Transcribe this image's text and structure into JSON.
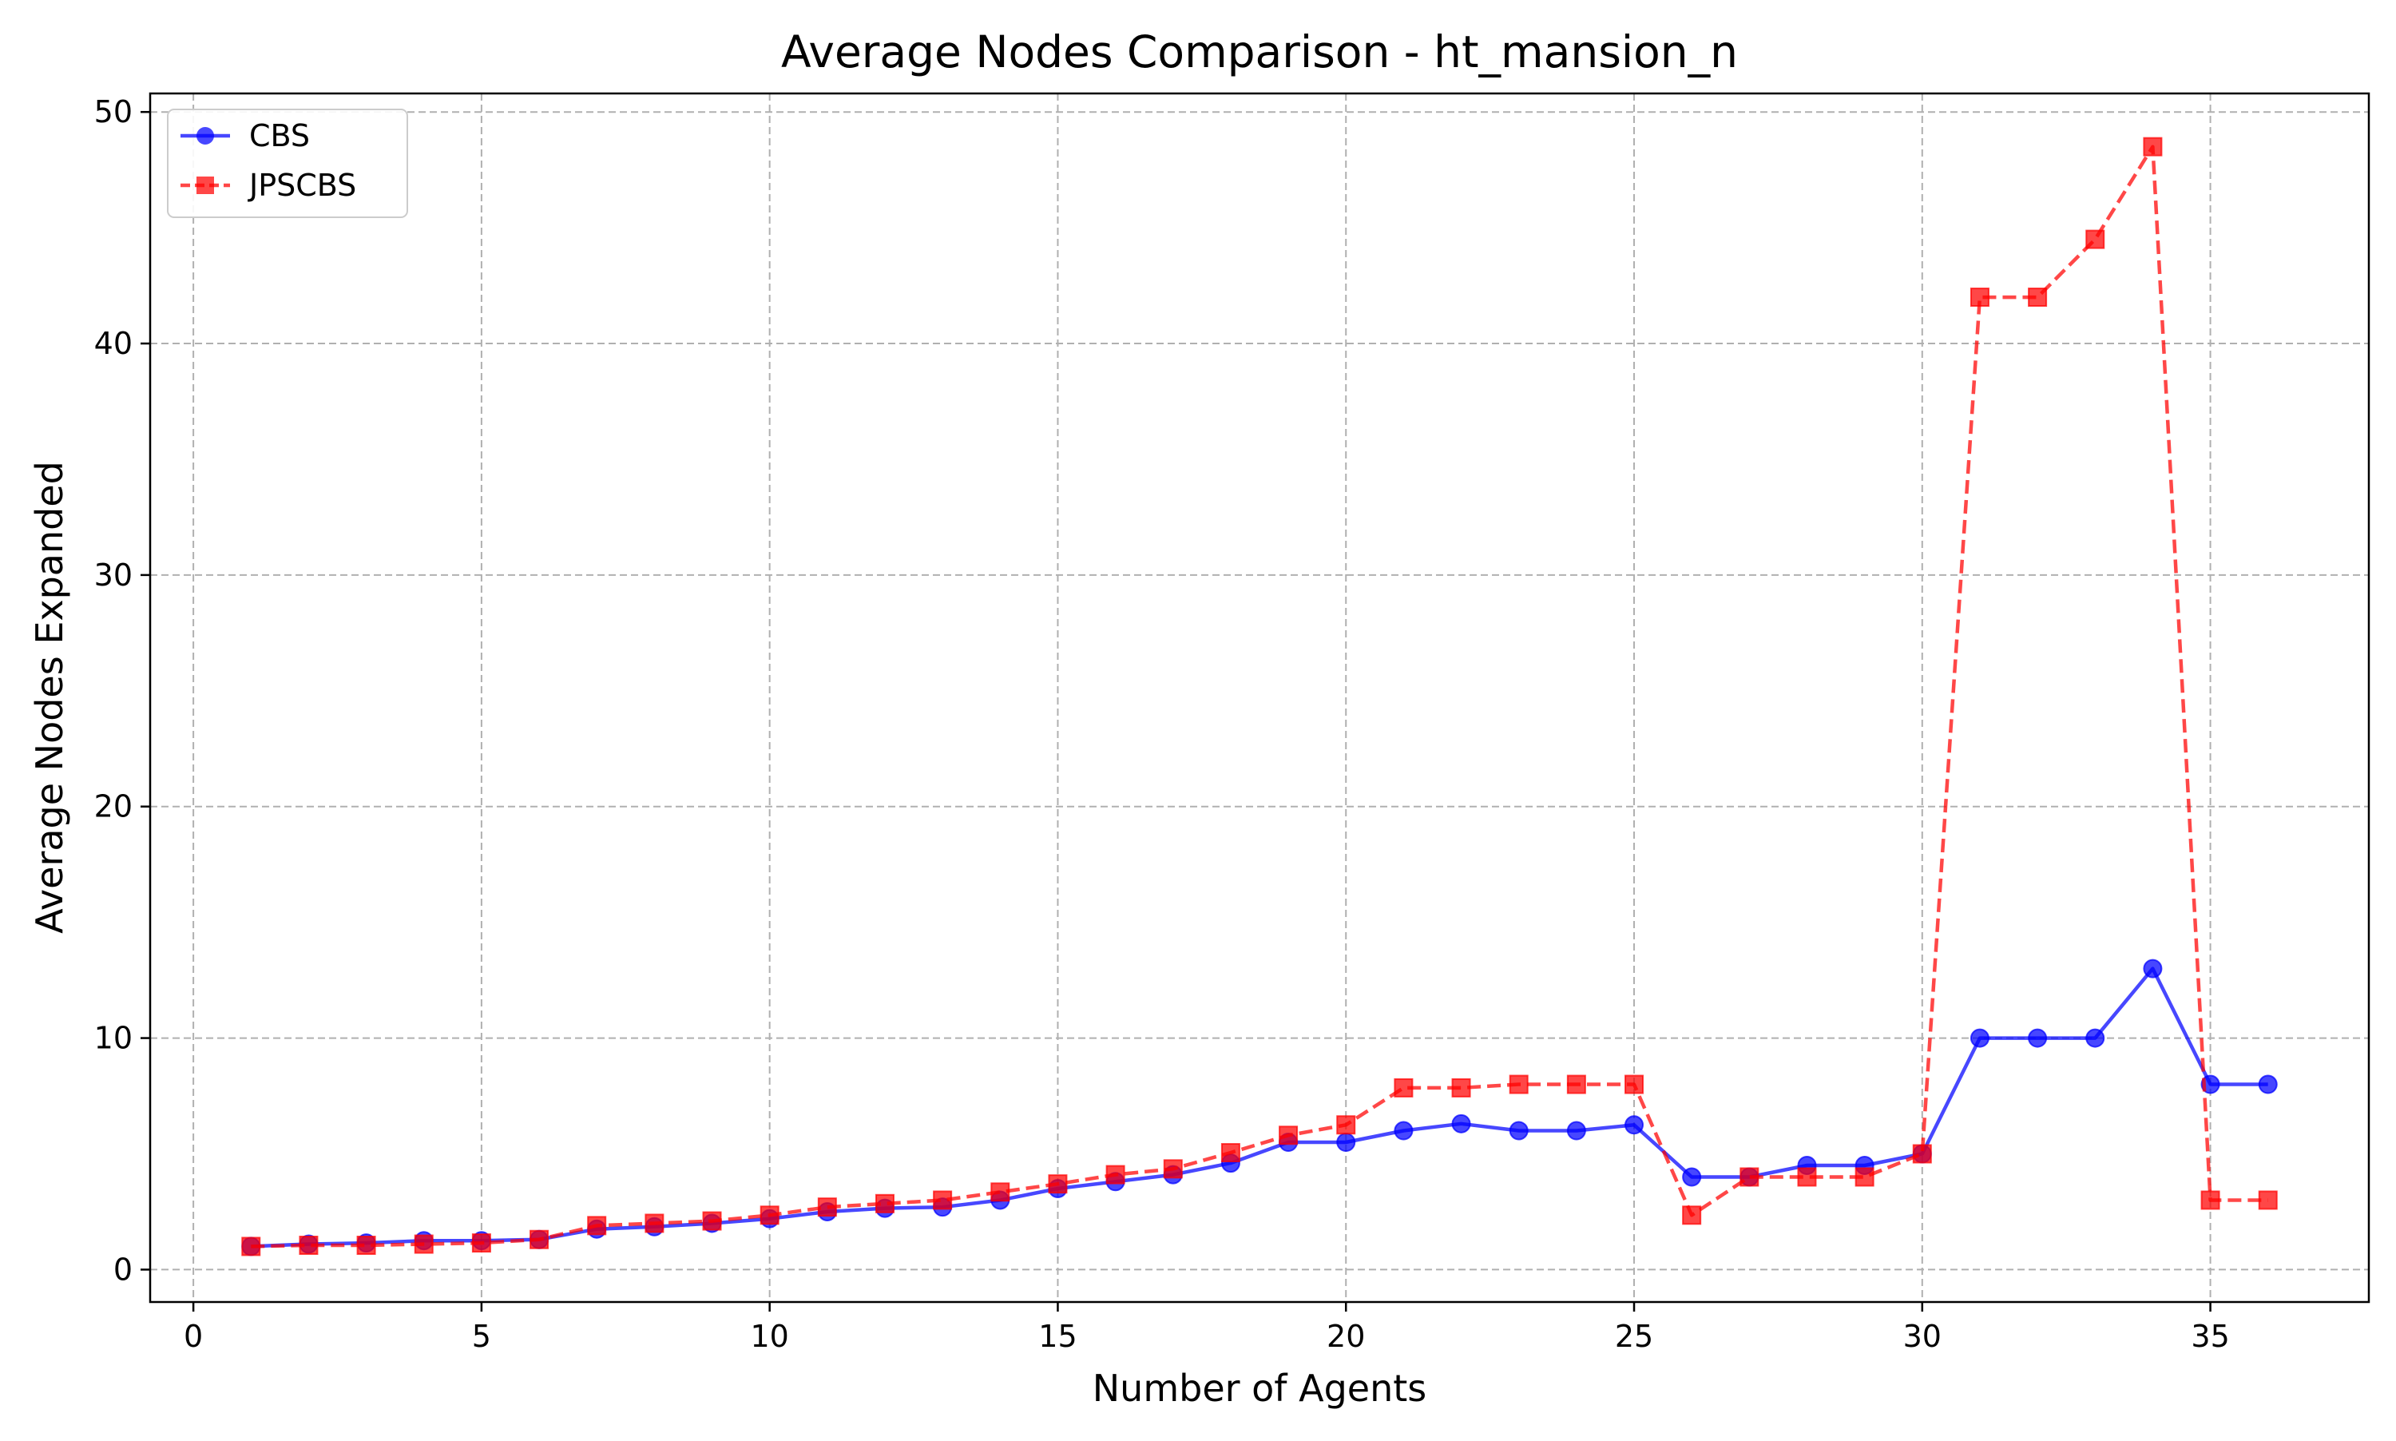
{
  "chart_data": {
    "type": "line",
    "title": "Average Nodes Comparison - ht_mansion_n",
    "xlabel": "Number of Agents",
    "ylabel": "Average Nodes Expanded",
    "xlim": [
      -0.75,
      37.75
    ],
    "ylim": [
      -1.4,
      50.8
    ],
    "xticks": [
      0,
      5,
      10,
      15,
      20,
      25,
      30,
      35
    ],
    "yticks": [
      0,
      10,
      20,
      30,
      40,
      50
    ],
    "grid": true,
    "legend_position": "top-left",
    "x": [
      1,
      2,
      3,
      4,
      5,
      6,
      7,
      8,
      9,
      10,
      11,
      12,
      13,
      14,
      15,
      16,
      17,
      18,
      19,
      20,
      21,
      22,
      23,
      24,
      25,
      26,
      27,
      28,
      29,
      30,
      31,
      32,
      33,
      34,
      35,
      36
    ],
    "series": [
      {
        "name": "CBS",
        "color": "#0000ff",
        "line_style": "solid",
        "marker": "circle",
        "values": [
          1.0,
          1.1,
          1.15,
          1.25,
          1.25,
          1.3,
          1.75,
          1.85,
          2.0,
          2.2,
          2.5,
          2.65,
          2.7,
          3.0,
          3.5,
          3.8,
          4.1,
          4.6,
          5.5,
          5.5,
          6.0,
          6.3,
          6.0,
          6.0,
          6.25,
          4.0,
          4.0,
          4.5,
          4.5,
          5.0,
          10.0,
          10.0,
          10.0,
          13.0,
          8.0,
          8.0
        ]
      },
      {
        "name": "JPSCBS",
        "color": "#ff0000",
        "line_style": "dashed",
        "marker": "square",
        "values": [
          1.0,
          1.05,
          1.05,
          1.1,
          1.15,
          1.3,
          1.9,
          2.0,
          2.1,
          2.35,
          2.7,
          2.85,
          3.0,
          3.35,
          3.7,
          4.1,
          4.35,
          5.05,
          5.8,
          6.25,
          7.85,
          7.85,
          8.0,
          8.0,
          8.0,
          2.35,
          4.0,
          4.0,
          4.0,
          5.0,
          42.0,
          42.0,
          44.5,
          48.5,
          3.0,
          3.0
        ]
      }
    ]
  }
}
